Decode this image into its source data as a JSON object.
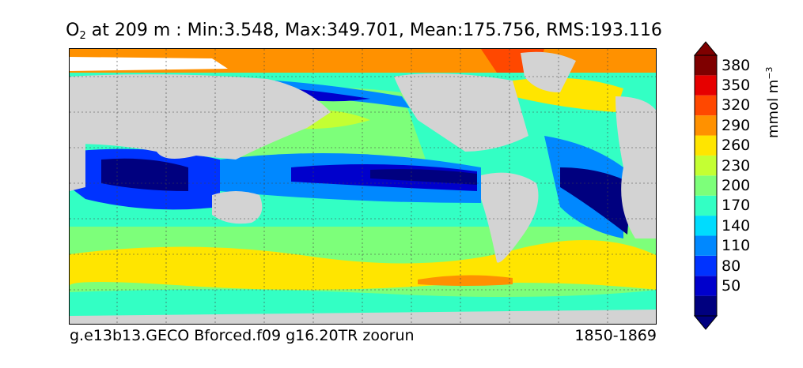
{
  "title": {
    "variable": "O",
    "variable_subscript": "2",
    "text": " at 209 m : Min:3.548, Max:349.701, Mean:175.756, RMS:193.116"
  },
  "footer": {
    "left": "g.e13b13.GECO Bforced.f09 g16.20TR zoorun",
    "right": "1850-1869"
  },
  "colorbar": {
    "units_prefix": "mmol m",
    "units_exponent": "−3",
    "levels": [
      {
        "color": "#00007f"
      },
      {
        "color": "#0000cc",
        "label": "50"
      },
      {
        "color": "#0033ff",
        "label": "80"
      },
      {
        "color": "#0088ff",
        "label": "110"
      },
      {
        "color": "#00dcfe",
        "label": "140"
      },
      {
        "color": "#33ffc4",
        "label": "170"
      },
      {
        "color": "#7dff7a",
        "label": "200"
      },
      {
        "color": "#c4ff33",
        "label": "230"
      },
      {
        "color": "#ffe500",
        "label": "260"
      },
      {
        "color": "#ff9100",
        "label": "290"
      },
      {
        "color": "#ff4800",
        "label": "320"
      },
      {
        "color": "#e60000",
        "label": "350"
      },
      {
        "color": "#7f0000",
        "label": "380"
      }
    ],
    "extend": "both"
  },
  "map": {
    "land_color": "#d3d3d3",
    "grid": true
  }
}
